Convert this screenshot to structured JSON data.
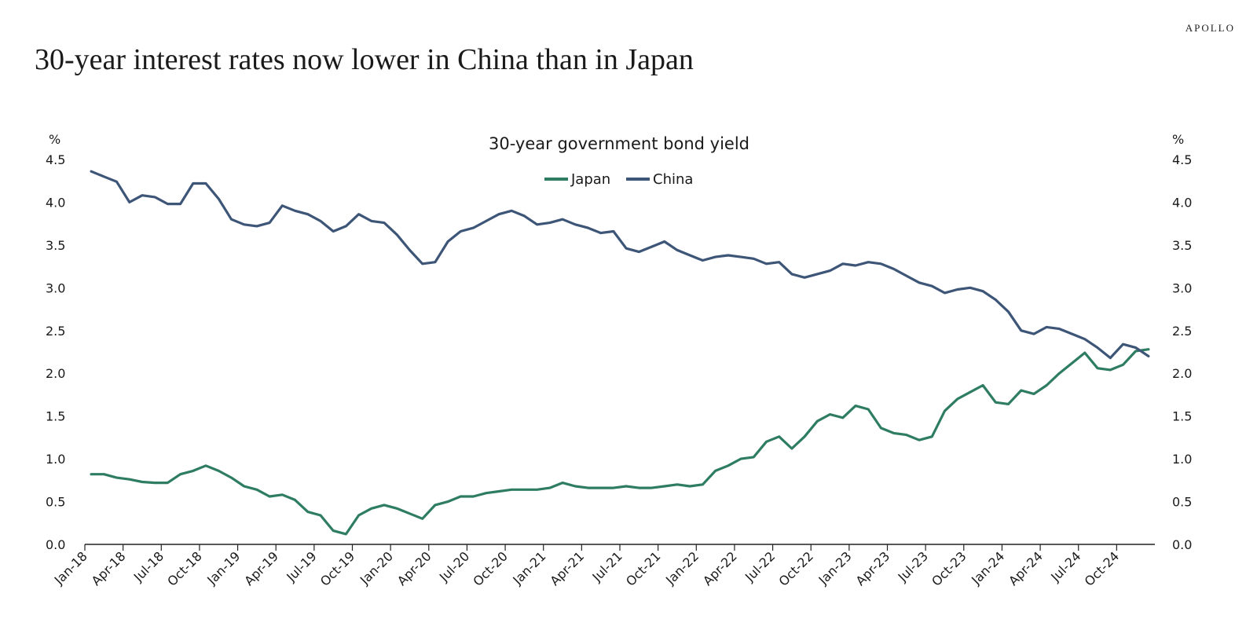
{
  "brand": "APOLLO",
  "title": "30-year interest rates now lower in China than in Japan",
  "chart_data": {
    "type": "line",
    "title": "30-year government bond yield",
    "ylabel_left": "%",
    "ylabel_right": "%",
    "ylim": [
      0,
      4.5
    ],
    "yticks": [
      "0.0",
      "0.5",
      "1.0",
      "1.5",
      "2.0",
      "2.5",
      "3.0",
      "3.5",
      "4.0",
      "4.5"
    ],
    "xlim": [
      "2018-01",
      "2024-12"
    ],
    "xticks": [
      "Jan-18",
      "Apr-18",
      "Jul-18",
      "Oct-18",
      "Jan-19",
      "Apr-19",
      "Jul-19",
      "Oct-19",
      "Jan-20",
      "Apr-20",
      "Jul-20",
      "Oct-20",
      "Jan-21",
      "Apr-21",
      "Jul-21",
      "Oct-21",
      "Jan-22",
      "Apr-22",
      "Jul-22",
      "Oct-22",
      "Jan-23",
      "Apr-23",
      "Jul-23",
      "Oct-23",
      "Jan-24",
      "Apr-24",
      "Jul-24",
      "Oct-24"
    ],
    "grid": false,
    "legend": "top-center",
    "series": [
      {
        "name": "Japan",
        "color": "#2e7d62",
        "points": [
          [
            "2018-01",
            0.82
          ],
          [
            "2018-02",
            0.82
          ],
          [
            "2018-03",
            0.78
          ],
          [
            "2018-04",
            0.76
          ],
          [
            "2018-05",
            0.73
          ],
          [
            "2018-06",
            0.72
          ],
          [
            "2018-07",
            0.72
          ],
          [
            "2018-08",
            0.82
          ],
          [
            "2018-09",
            0.86
          ],
          [
            "2018-10",
            0.92
          ],
          [
            "2018-11",
            0.86
          ],
          [
            "2018-12",
            0.78
          ],
          [
            "2019-01",
            0.68
          ],
          [
            "2019-02",
            0.64
          ],
          [
            "2019-03",
            0.56
          ],
          [
            "2019-04",
            0.58
          ],
          [
            "2019-05",
            0.52
          ],
          [
            "2019-06",
            0.38
          ],
          [
            "2019-07",
            0.34
          ],
          [
            "2019-08",
            0.16
          ],
          [
            "2019-09",
            0.12
          ],
          [
            "2019-10",
            0.34
          ],
          [
            "2019-11",
            0.42
          ],
          [
            "2019-12",
            0.46
          ],
          [
            "2020-01",
            0.42
          ],
          [
            "2020-02",
            0.36
          ],
          [
            "2020-03",
            0.3
          ],
          [
            "2020-04",
            0.46
          ],
          [
            "2020-05",
            0.5
          ],
          [
            "2020-06",
            0.56
          ],
          [
            "2020-07",
            0.56
          ],
          [
            "2020-08",
            0.6
          ],
          [
            "2020-09",
            0.62
          ],
          [
            "2020-10",
            0.64
          ],
          [
            "2020-11",
            0.64
          ],
          [
            "2020-12",
            0.64
          ],
          [
            "2021-01",
            0.66
          ],
          [
            "2021-02",
            0.72
          ],
          [
            "2021-03",
            0.68
          ],
          [
            "2021-04",
            0.66
          ],
          [
            "2021-05",
            0.66
          ],
          [
            "2021-06",
            0.66
          ],
          [
            "2021-07",
            0.68
          ],
          [
            "2021-08",
            0.66
          ],
          [
            "2021-09",
            0.66
          ],
          [
            "2021-10",
            0.68
          ],
          [
            "2021-11",
            0.7
          ],
          [
            "2021-12",
            0.68
          ],
          [
            "2022-01",
            0.7
          ],
          [
            "2022-02",
            0.86
          ],
          [
            "2022-03",
            0.92
          ],
          [
            "2022-04",
            1.0
          ],
          [
            "2022-05",
            1.02
          ],
          [
            "2022-06",
            1.2
          ],
          [
            "2022-07",
            1.26
          ],
          [
            "2022-08",
            1.12
          ],
          [
            "2022-09",
            1.26
          ],
          [
            "2022-10",
            1.44
          ],
          [
            "2022-11",
            1.52
          ],
          [
            "2022-12",
            1.48
          ],
          [
            "2023-01",
            1.62
          ],
          [
            "2023-02",
            1.58
          ],
          [
            "2023-03",
            1.36
          ],
          [
            "2023-04",
            1.3
          ],
          [
            "2023-05",
            1.28
          ],
          [
            "2023-06",
            1.22
          ],
          [
            "2023-07",
            1.26
          ],
          [
            "2023-08",
            1.56
          ],
          [
            "2023-09",
            1.7
          ],
          [
            "2023-10",
            1.78
          ],
          [
            "2023-11",
            1.86
          ],
          [
            "2023-12",
            1.66
          ],
          [
            "2024-01",
            1.64
          ],
          [
            "2024-02",
            1.8
          ],
          [
            "2024-03",
            1.76
          ],
          [
            "2024-04",
            1.86
          ],
          [
            "2024-05",
            2.0
          ],
          [
            "2024-06",
            2.12
          ],
          [
            "2024-07",
            2.24
          ],
          [
            "2024-08",
            2.06
          ],
          [
            "2024-09",
            2.04
          ],
          [
            "2024-10",
            2.1
          ],
          [
            "2024-11",
            2.26
          ],
          [
            "2024-12",
            2.28
          ]
        ]
      },
      {
        "name": "China",
        "color": "#3d5577",
        "points": [
          [
            "2018-01",
            4.36
          ],
          [
            "2018-02",
            4.3
          ],
          [
            "2018-03",
            4.24
          ],
          [
            "2018-04",
            4.0
          ],
          [
            "2018-05",
            4.08
          ],
          [
            "2018-06",
            4.06
          ],
          [
            "2018-07",
            3.98
          ],
          [
            "2018-08",
            3.98
          ],
          [
            "2018-09",
            4.22
          ],
          [
            "2018-10",
            4.22
          ],
          [
            "2018-11",
            4.04
          ],
          [
            "2018-12",
            3.8
          ],
          [
            "2019-01",
            3.74
          ],
          [
            "2019-02",
            3.72
          ],
          [
            "2019-03",
            3.76
          ],
          [
            "2019-04",
            3.96
          ],
          [
            "2019-05",
            3.9
          ],
          [
            "2019-06",
            3.86
          ],
          [
            "2019-07",
            3.78
          ],
          [
            "2019-08",
            3.66
          ],
          [
            "2019-09",
            3.72
          ],
          [
            "2019-10",
            3.86
          ],
          [
            "2019-11",
            3.78
          ],
          [
            "2019-12",
            3.76
          ],
          [
            "2020-01",
            3.62
          ],
          [
            "2020-02",
            3.44
          ],
          [
            "2020-03",
            3.28
          ],
          [
            "2020-04",
            3.3
          ],
          [
            "2020-05",
            3.54
          ],
          [
            "2020-06",
            3.66
          ],
          [
            "2020-07",
            3.7
          ],
          [
            "2020-08",
            3.78
          ],
          [
            "2020-09",
            3.86
          ],
          [
            "2020-10",
            3.9
          ],
          [
            "2020-11",
            3.84
          ],
          [
            "2020-12",
            3.74
          ],
          [
            "2021-01",
            3.76
          ],
          [
            "2021-02",
            3.8
          ],
          [
            "2021-03",
            3.74
          ],
          [
            "2021-04",
            3.7
          ],
          [
            "2021-05",
            3.64
          ],
          [
            "2021-06",
            3.66
          ],
          [
            "2021-07",
            3.46
          ],
          [
            "2021-08",
            3.42
          ],
          [
            "2021-09",
            3.48
          ],
          [
            "2021-10",
            3.54
          ],
          [
            "2021-11",
            3.44
          ],
          [
            "2021-12",
            3.38
          ],
          [
            "2022-01",
            3.32
          ],
          [
            "2022-02",
            3.36
          ],
          [
            "2022-03",
            3.38
          ],
          [
            "2022-04",
            3.36
          ],
          [
            "2022-05",
            3.34
          ],
          [
            "2022-06",
            3.28
          ],
          [
            "2022-07",
            3.3
          ],
          [
            "2022-08",
            3.16
          ],
          [
            "2022-09",
            3.12
          ],
          [
            "2022-10",
            3.16
          ],
          [
            "2022-11",
            3.2
          ],
          [
            "2022-12",
            3.28
          ],
          [
            "2023-01",
            3.26
          ],
          [
            "2023-02",
            3.3
          ],
          [
            "2023-03",
            3.28
          ],
          [
            "2023-04",
            3.22
          ],
          [
            "2023-05",
            3.14
          ],
          [
            "2023-06",
            3.06
          ],
          [
            "2023-07",
            3.02
          ],
          [
            "2023-08",
            2.94
          ],
          [
            "2023-09",
            2.98
          ],
          [
            "2023-10",
            3.0
          ],
          [
            "2023-11",
            2.96
          ],
          [
            "2023-12",
            2.86
          ],
          [
            "2024-01",
            2.72
          ],
          [
            "2024-02",
            2.5
          ],
          [
            "2024-03",
            2.46
          ],
          [
            "2024-04",
            2.54
          ],
          [
            "2024-05",
            2.52
          ],
          [
            "2024-06",
            2.46
          ],
          [
            "2024-07",
            2.4
          ],
          [
            "2024-08",
            2.3
          ],
          [
            "2024-09",
            2.18
          ],
          [
            "2024-10",
            2.34
          ],
          [
            "2024-11",
            2.3
          ],
          [
            "2024-12",
            2.2
          ]
        ]
      }
    ]
  }
}
